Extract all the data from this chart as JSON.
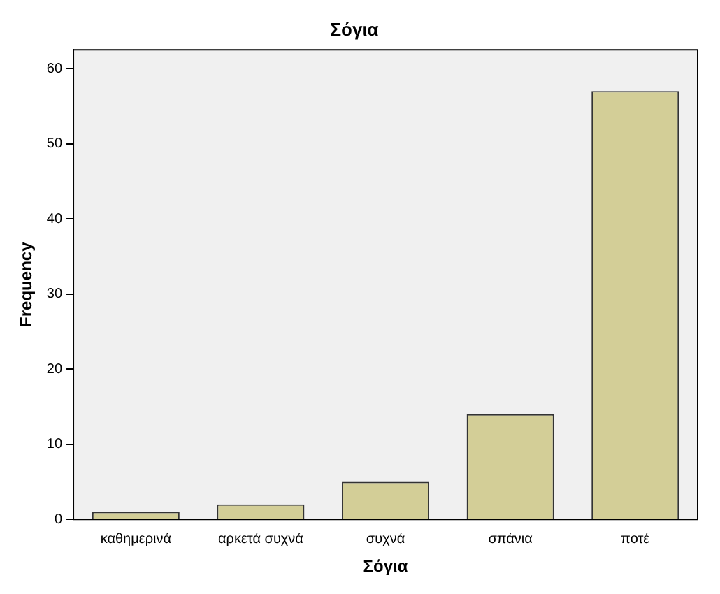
{
  "chart_data": {
    "type": "bar",
    "title": "Σόγια",
    "xlabel": "Σόγια",
    "ylabel": "Frequency",
    "categories": [
      "καθημερινά",
      "αρκετά συχνά",
      "συχνά",
      "σπάνια",
      "ποτέ"
    ],
    "values": [
      1,
      2,
      5,
      14,
      57
    ],
    "color": "#d3ce97",
    "ylim": [
      0,
      62.5
    ],
    "yticks": [
      0,
      10,
      20,
      30,
      40,
      50,
      60
    ],
    "grid": false,
    "legend": false
  }
}
